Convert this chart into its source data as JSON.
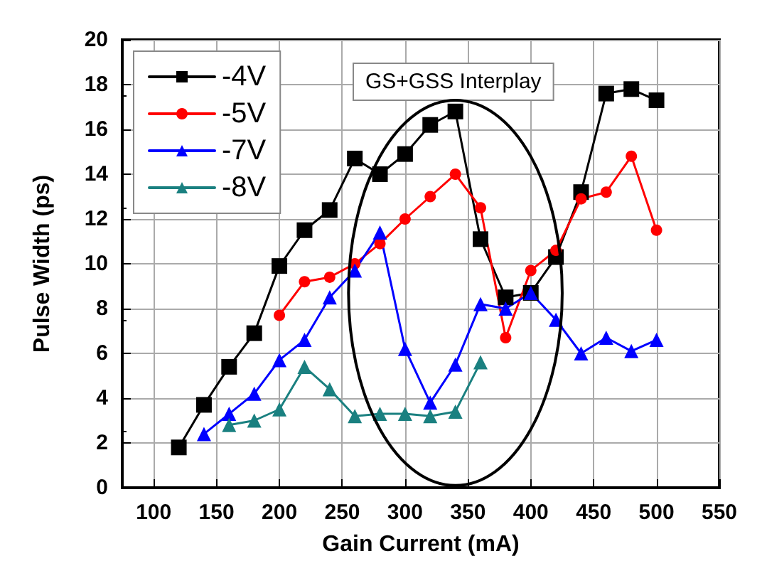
{
  "chart_data": {
    "type": "line",
    "xlabel": "Gain Current (mA)",
    "ylabel": "Pulse Width (ps)",
    "annotations": [
      "GS+GSS Interplay"
    ],
    "xlim": [
      75,
      550
    ],
    "xticks": [
      100,
      150,
      200,
      250,
      300,
      350,
      400,
      450,
      500,
      550
    ],
    "ylim": [
      0,
      20
    ],
    "yticks": [
      0,
      2,
      4,
      6,
      8,
      10,
      12,
      14,
      16,
      18,
      20
    ],
    "grid": true,
    "legend": "top left",
    "series": [
      {
        "name": "-4V",
        "color": "#000000",
        "marker": "square",
        "x": [
          120,
          140,
          160,
          180,
          200,
          220,
          240,
          260,
          280,
          300,
          320,
          340,
          360,
          380,
          400,
          420,
          440,
          460,
          480,
          500
        ],
        "values": [
          1.8,
          3.7,
          5.4,
          6.9,
          9.9,
          11.5,
          12.4,
          14.7,
          14.0,
          14.9,
          16.2,
          16.8,
          11.1,
          8.5,
          8.7,
          10.3,
          13.2,
          17.6,
          17.8,
          17.3
        ]
      },
      {
        "name": "-5V",
        "color": "#ff0000",
        "marker": "circle",
        "x": [
          200,
          220,
          240,
          260,
          280,
          300,
          320,
          340,
          360,
          380,
          400,
          420,
          440,
          460,
          480,
          500
        ],
        "values": [
          7.7,
          9.2,
          9.4,
          10.0,
          10.9,
          12.0,
          13.0,
          14.0,
          12.5,
          6.7,
          9.7,
          10.6,
          12.9,
          13.2,
          14.8,
          11.5
        ]
      },
      {
        "name": "-7V",
        "color": "#0000ff",
        "marker": "triangle",
        "x": [
          140,
          160,
          180,
          200,
          220,
          240,
          260,
          280,
          300,
          320,
          340,
          360,
          380,
          400,
          420,
          440,
          460,
          480,
          500
        ],
        "values": [
          2.4,
          3.3,
          4.2,
          5.7,
          6.6,
          8.5,
          9.7,
          11.4,
          6.2,
          3.8,
          5.5,
          8.2,
          8.0,
          8.7,
          7.5,
          6.0,
          6.7,
          6.1,
          6.6
        ]
      },
      {
        "name": "-8V",
        "color": "#1a8080",
        "marker": "triangle",
        "x": [
          160,
          180,
          200,
          220,
          240,
          260,
          280,
          300,
          320,
          340,
          360
        ],
        "values": [
          2.8,
          3.0,
          3.5,
          5.4,
          4.4,
          3.2,
          3.3,
          3.3,
          3.2,
          3.4,
          5.6
        ]
      }
    ]
  }
}
